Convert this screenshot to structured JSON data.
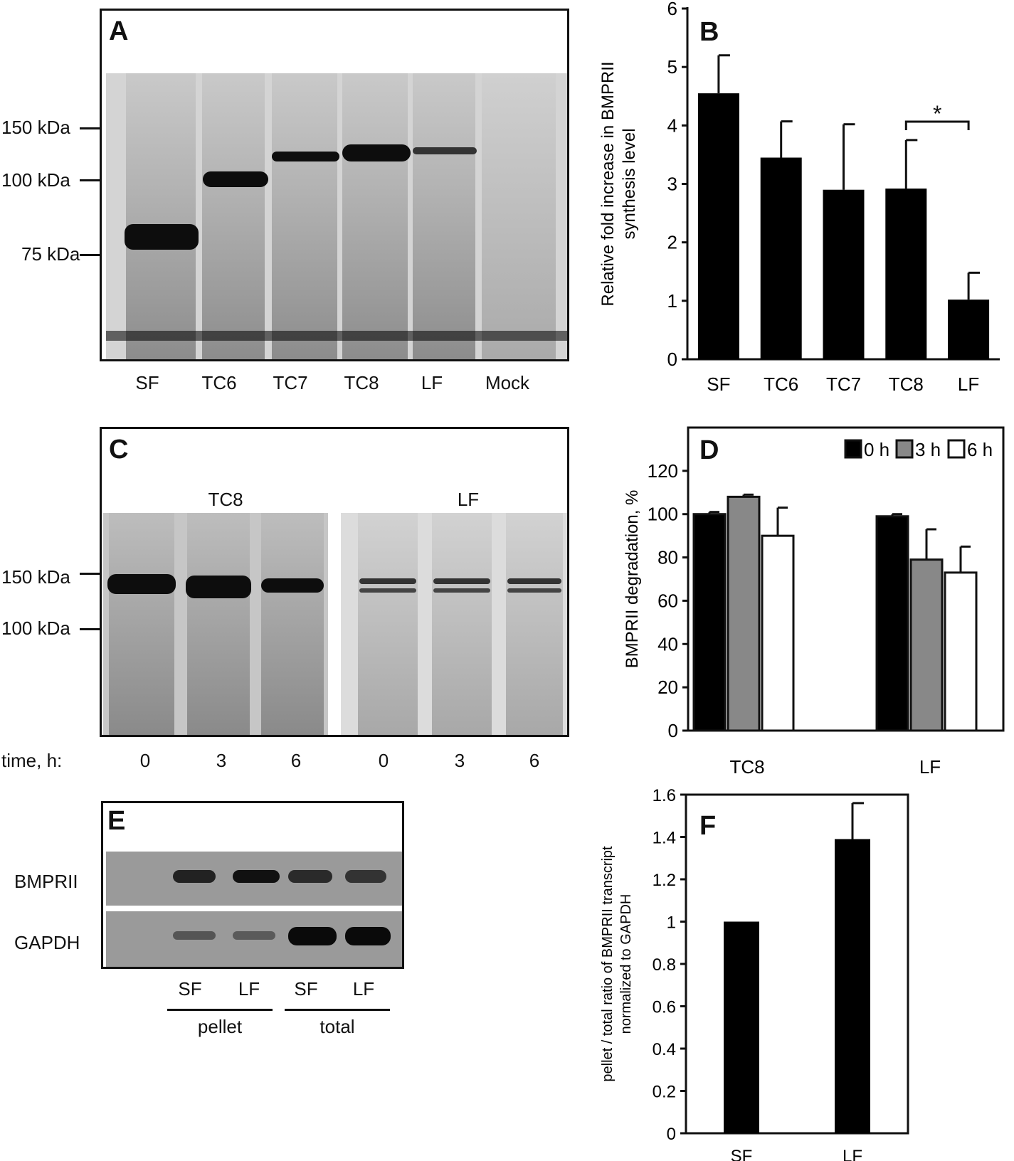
{
  "panelA": {
    "letter": "A",
    "markers": [
      "150 kDa",
      "100 kDa",
      "75 kDa"
    ],
    "lanes": [
      "SF",
      "TC6",
      "TC7",
      "TC8",
      "LF",
      "Mock"
    ]
  },
  "panelB": {
    "letter": "B",
    "significance": "*"
  },
  "panelC": {
    "letter": "C",
    "groups": [
      "TC8",
      "LF"
    ],
    "markers": [
      "150 kDa",
      "100 kDa"
    ],
    "time_label": "time, h:",
    "times": [
      "0",
      "3",
      "6",
      "0",
      "3",
      "6"
    ]
  },
  "panelD": {
    "letter": "D"
  },
  "panelE": {
    "letter": "E",
    "rows": [
      "BMPRII",
      "GAPDH"
    ],
    "lanes": [
      "SF",
      "LF",
      "SF",
      "LF"
    ],
    "groups": [
      "pellet",
      "total"
    ]
  },
  "panelF": {
    "letter": "F"
  },
  "chart_data": [
    {
      "id": "B",
      "type": "bar",
      "categories": [
        "SF",
        "TC6",
        "TC7",
        "TC8",
        "LF"
      ],
      "values": [
        4.55,
        3.45,
        2.9,
        2.92,
        1.02
      ],
      "errors": [
        0.65,
        0.62,
        1.12,
        0.83,
        0.46
      ],
      "ylabel": "Relative fold increase in BMPRII synthesis level",
      "ylim": [
        0,
        6
      ],
      "yticks": [
        "0",
        "1",
        "2",
        "3",
        "4",
        "5",
        "6"
      ],
      "color": "#000000"
    },
    {
      "id": "D",
      "type": "bar",
      "categories": [
        "TC8",
        "LF"
      ],
      "series": [
        {
          "name": "0 h",
          "values": [
            100,
            99
          ],
          "errors": [
            1,
            1
          ],
          "color": "#000000"
        },
        {
          "name": "3 h",
          "values": [
            108,
            79
          ],
          "errors": [
            1,
            14
          ],
          "color": "#888888"
        },
        {
          "name": "6 h",
          "values": [
            90,
            73
          ],
          "errors": [
            13,
            12
          ],
          "color": "#ffffff"
        }
      ],
      "ylabel": "BMPRII degradation, %",
      "ylim": [
        0,
        140
      ],
      "yticks": [
        "0",
        "20",
        "40",
        "60",
        "80",
        "100",
        "120"
      ],
      "legend": "top-right"
    },
    {
      "id": "F",
      "type": "bar",
      "categories": [
        "SF",
        "LF"
      ],
      "values": [
        1.0,
        1.39
      ],
      "errors": [
        0,
        0.17
      ],
      "ylabel": "pellet / total ratio of BMPRII transcript normalized to GAPDH",
      "ylim": [
        0,
        1.6
      ],
      "yticks": [
        "0",
        "0.2",
        "0.4",
        "0.6",
        "0.8",
        "1",
        "1.2",
        "1.4",
        "1.6"
      ],
      "color": "#000000"
    }
  ]
}
